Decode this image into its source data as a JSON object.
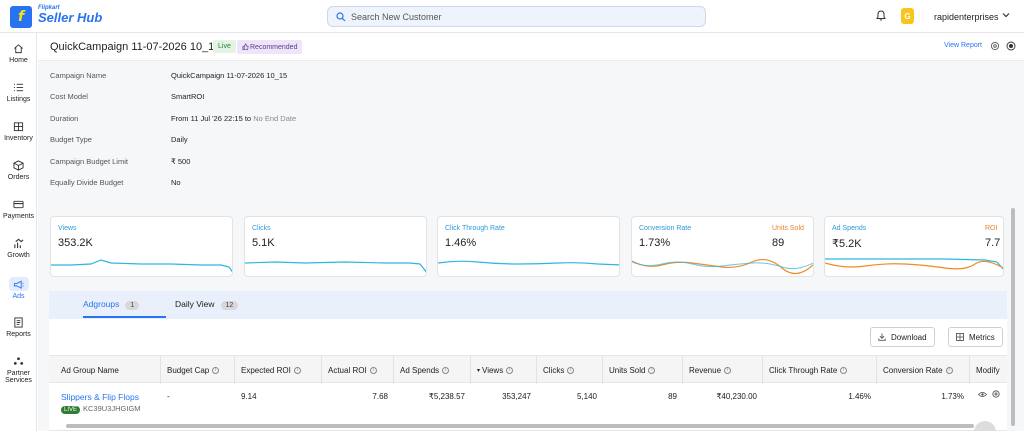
{
  "brand": {
    "top": "Flipkart",
    "main": "Seller Hub",
    "logo_letter": "f"
  },
  "search": {
    "placeholder": "Search New Customer"
  },
  "user": {
    "name": "rapidenterprises",
    "badge": "G"
  },
  "sidebar": {
    "items": [
      {
        "label": "Home",
        "icon": "home-icon"
      },
      {
        "label": "Listings",
        "icon": "list-icon"
      },
      {
        "label": "Inventory",
        "icon": "inventory-icon"
      },
      {
        "label": "Orders",
        "icon": "box-icon"
      },
      {
        "label": "Payments",
        "icon": "card-icon"
      },
      {
        "label": "Growth",
        "icon": "growth-icon"
      },
      {
        "label": "Ads",
        "icon": "megaphone-icon",
        "active": true
      },
      {
        "label": "Reports",
        "icon": "report-icon"
      },
      {
        "label": "Partner",
        "label2": "Services",
        "icon": "partner-icon"
      }
    ]
  },
  "campaign": {
    "title": "QuickCampaign 11-07-2026 10_15",
    "live": "Live",
    "recommended": "Recommended",
    "view_report": "View Report",
    "details": [
      {
        "label": "Campaign Name",
        "value": "QuickCampaign 11-07-2026 10_15"
      },
      {
        "label": "Cost Model",
        "value": "SmartROI"
      },
      {
        "label": "Duration",
        "value": "From 11 Jul '26 22:15 to",
        "muted": "No End Date"
      },
      {
        "label": "Budget Type",
        "value": "Daily"
      },
      {
        "label": "Campaign Budget Limit",
        "value": "₹ 500"
      },
      {
        "label": "Equally Divide Budget",
        "value": "No"
      }
    ]
  },
  "metrics": [
    {
      "label": "Views",
      "value": "353.2K"
    },
    {
      "label": "Clicks",
      "value": "5.1K"
    },
    {
      "label": "Click Through Rate",
      "value": "1.46%"
    },
    {
      "label": "Conversion Rate",
      "value": "1.73%",
      "label2": "Units Sold",
      "value2": "89"
    },
    {
      "label": "Ad Spends",
      "value": "₹5.2K",
      "label2": "ROI",
      "value2": "7.7"
    }
  ],
  "tabs": [
    {
      "label": "Adgroups",
      "count": "1"
    },
    {
      "label": "Daily View",
      "count": "12"
    }
  ],
  "buttons": {
    "download": "Download",
    "metrics": "Metrics"
  },
  "table": {
    "headers": [
      "Ad Group Name",
      "Budget Cap",
      "Expected ROI",
      "Actual ROI",
      "Ad Spends",
      "Views",
      "Clicks",
      "Units Sold",
      "Revenue",
      "Click Through Rate",
      "Conversion Rate",
      "Modify"
    ],
    "rows": [
      {
        "name": "Slippers & Flip Flops",
        "status": "LIVE",
        "id": "KC39U3JHGIGM",
        "budget_cap": "-",
        "expected_roi": "9.14",
        "actual_roi": "7.68",
        "ad_spends": "₹5,238.57",
        "views": "353,247",
        "clicks": "5,140",
        "units_sold": "89",
        "revenue": "₹40,230.00",
        "ctr": "1.46%",
        "conversion_rate": "1.73%"
      }
    ]
  },
  "colors": {
    "accent": "#2874f0",
    "series_blue": "#2ab7e0",
    "series_orange": "#f08a24",
    "live_green": "#2e7d32"
  }
}
